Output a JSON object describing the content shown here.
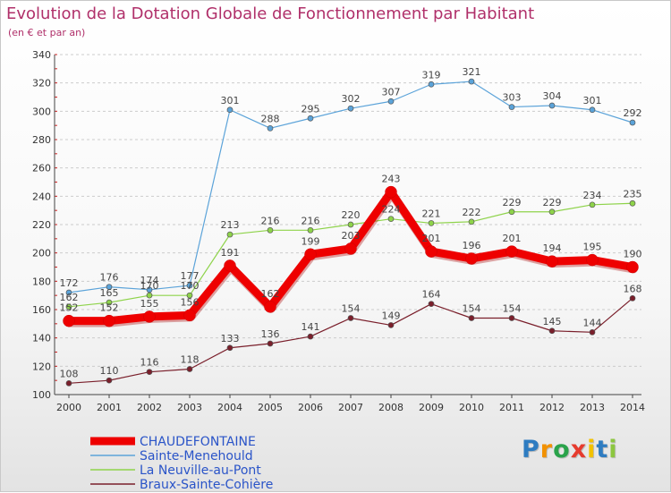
{
  "chart_data": {
    "type": "line",
    "title": "Evolution de la Dotation Globale de Fonctionnement par Habitant",
    "subtitle": "(en € et par an)",
    "xlabel": "",
    "ylabel": "",
    "ylim": [
      100,
      340
    ],
    "yticks": [
      "100",
      "120",
      "140",
      "160",
      "180",
      "200",
      "220",
      "240",
      "260",
      "280",
      "300",
      "320",
      "340"
    ],
    "categories": [
      "2000",
      "2001",
      "2002",
      "2003",
      "2004",
      "2005",
      "2006",
      "2007",
      "2008",
      "2009",
      "2010",
      "2011",
      "2012",
      "2013",
      "2014"
    ],
    "grid": "horizontal",
    "legend_position": "bottom-left",
    "series": [
      {
        "name": "Braux-Sainte-Cohière",
        "color": "#7a1f2b",
        "values": [
          108,
          110,
          116,
          118,
          133,
          136,
          141,
          154,
          149,
          164,
          154,
          154,
          145,
          144,
          168
        ]
      },
      {
        "name": "La Neuville-au-Pont",
        "color": "#8ed34a",
        "values": [
          162,
          165,
          170,
          170,
          213,
          216,
          216,
          220,
          224,
          221,
          222,
          229,
          229,
          234,
          235
        ]
      },
      {
        "name": "Sainte-Menehould",
        "color": "#5ba3d9",
        "values": [
          172,
          176,
          174,
          177,
          301,
          288,
          295,
          302,
          307,
          319,
          321,
          303,
          304,
          301,
          292
        ]
      },
      {
        "name": "CHAUDEFONTAINE",
        "color": "#ee0000",
        "values": [
          152,
          152,
          155,
          156,
          191,
          162,
          199,
          203,
          243,
          201,
          196,
          201,
          194,
          195,
          190
        ]
      }
    ]
  },
  "legend": [
    {
      "label": "CHAUDEFONTAINE",
      "color": "#ee0000"
    },
    {
      "label": "Sainte-Menehould",
      "color": "#5ba3d9"
    },
    {
      "label": "La Neuville-au-Pont",
      "color": "#8ed34a"
    },
    {
      "label": "Braux-Sainte-Cohière",
      "color": "#7a1f2b"
    }
  ],
  "logo": {
    "letters": [
      "P",
      "r",
      "o",
      "x",
      "i",
      "t",
      "i"
    ],
    "colors": [
      "#2e7cc1",
      "#f29100",
      "#2aa34b",
      "#e63b2e",
      "#f2c200",
      "#2e7cc1",
      "#8cc63f"
    ]
  }
}
